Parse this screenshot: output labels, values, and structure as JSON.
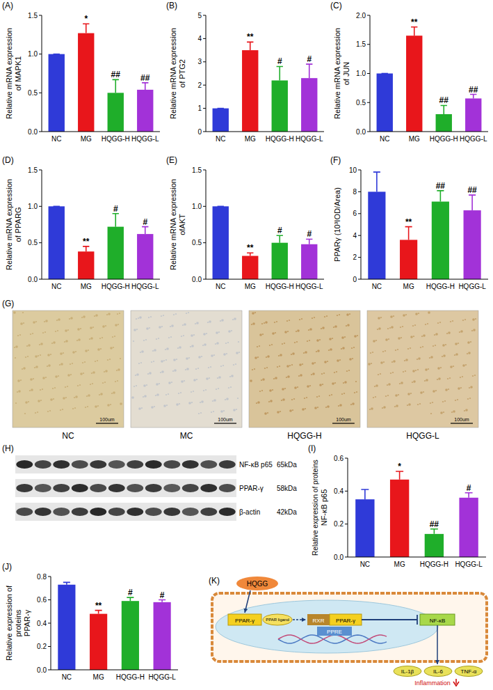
{
  "chart_data": [
    {
      "type": "bar",
      "panel": "(A)",
      "ylabel": [
        "Relative mRNA expression",
        "of MAPK1"
      ],
      "categories": [
        "NC",
        "MG",
        "HQGG-H",
        "HQGG-L"
      ],
      "values": [
        1.0,
        1.27,
        0.5,
        0.54
      ],
      "errors": [
        0,
        0.12,
        0.17,
        0.09
      ],
      "colors": [
        "#2f3ad8",
        "#e8161b",
        "#1fae2a",
        "#a232d8"
      ],
      "annotations": [
        null,
        "*",
        "##",
        "##"
      ],
      "ylim": [
        0,
        1.5
      ],
      "yticks": [
        {
          "value": 0,
          "label": "0.0"
        },
        0.5,
        {
          "value": 1,
          "label": "1.0"
        },
        1.5
      ]
    },
    {
      "type": "bar",
      "panel": "(B)",
      "ylabel": [
        "Relative mRNA expression",
        "of  PTG2"
      ],
      "categories": [
        "NC",
        "MG",
        "HQGG-H",
        "HQGG-L"
      ],
      "values": [
        1.0,
        3.5,
        2.2,
        2.3
      ],
      "errors": [
        0,
        0.35,
        0.6,
        0.6
      ],
      "colors": [
        "#2f3ad8",
        "#e8161b",
        "#1fae2a",
        "#a232d8"
      ],
      "annotations": [
        null,
        "**",
        "#",
        "#"
      ],
      "ylim": [
        0,
        5
      ],
      "yticks": [
        0,
        1,
        2,
        3,
        4,
        5
      ]
    },
    {
      "type": "bar",
      "panel": "(C)",
      "ylabel": [
        "Relative mRNA expression",
        "of JUN"
      ],
      "categories": [
        "NC",
        "MG",
        "HQGG-H",
        "HQGG-L"
      ],
      "values": [
        1.0,
        1.65,
        0.3,
        0.57
      ],
      "errors": [
        0,
        0.15,
        0.15,
        0.07
      ],
      "colors": [
        "#2f3ad8",
        "#e8161b",
        "#1fae2a",
        "#a232d8"
      ],
      "annotations": [
        null,
        "**",
        "##",
        "##"
      ],
      "ylim": [
        0,
        2
      ],
      "yticks": [
        {
          "value": 0,
          "label": "0.0"
        },
        0.5,
        {
          "value": 1,
          "label": "1.0"
        },
        1.5,
        {
          "value": 2,
          "label": "2.0"
        }
      ]
    },
    {
      "type": "bar",
      "panel": "(D)",
      "ylabel": [
        "Relative mRNA expression",
        "of PPARG"
      ],
      "categories": [
        "NC",
        "MG",
        "HQGG-H",
        "HQGG-L"
      ],
      "values": [
        1.0,
        0.38,
        0.72,
        0.62
      ],
      "errors": [
        0,
        0.07,
        0.18,
        0.1
      ],
      "colors": [
        "#2f3ad8",
        "#e8161b",
        "#1fae2a",
        "#a232d8"
      ],
      "annotations": [
        null,
        "**",
        "#",
        "#"
      ],
      "ylim": [
        0,
        1.5
      ],
      "yticks": [
        {
          "value": 0,
          "label": "0.0"
        },
        0.5,
        {
          "value": 1,
          "label": "1.0"
        },
        1.5
      ]
    },
    {
      "type": "bar",
      "panel": "(E)",
      "ylabel": [
        "Relative mRNA expression",
        "ofAKT"
      ],
      "categories": [
        "NC",
        "MG",
        "HQGG-H",
        "HQGG-L"
      ],
      "values": [
        1.0,
        0.32,
        0.5,
        0.48
      ],
      "errors": [
        0,
        0.04,
        0.1,
        0.07
      ],
      "colors": [
        "#2f3ad8",
        "#e8161b",
        "#1fae2a",
        "#a232d8"
      ],
      "annotations": [
        null,
        "**",
        "#",
        "#"
      ],
      "ylim": [
        0,
        1.5
      ],
      "yticks": [
        {
          "value": 0,
          "label": "0.0"
        },
        0.5,
        {
          "value": 1,
          "label": "1.0"
        },
        1.5
      ]
    },
    {
      "type": "bar",
      "panel": "(F)",
      "ylabel": [
        "PPARγ (10³IOD/Area)"
      ],
      "categories": [
        "NC",
        "MG",
        "HQGG-H",
        "HQGG-L"
      ],
      "values": [
        8.0,
        3.6,
        7.1,
        6.3
      ],
      "errors": [
        1.8,
        1.2,
        1.0,
        1.4
      ],
      "colors": [
        "#2f3ad8",
        "#e8161b",
        "#1fae2a",
        "#a232d8"
      ],
      "annotations": [
        null,
        "**",
        "##",
        "##"
      ],
      "ylim": [
        0,
        10
      ],
      "yticks": [
        0,
        2,
        4,
        6,
        8,
        10
      ]
    },
    {
      "type": "bar",
      "panel": "(I)",
      "ylabel": [
        "Relative expression of proteins",
        "NF-κB p65"
      ],
      "categories": [
        "NC",
        "MG",
        "HQGG-H",
        "HQGG-L"
      ],
      "values": [
        0.35,
        0.47,
        0.14,
        0.36
      ],
      "errors": [
        0.06,
        0.05,
        0.03,
        0.03
      ],
      "colors": [
        "#2f3ad8",
        "#e8161b",
        "#1fae2a",
        "#a232d8"
      ],
      "annotations": [
        null,
        "*",
        "##",
        "#"
      ],
      "ylim": [
        0,
        0.6
      ],
      "yticks": [
        {
          "value": 0,
          "label": "0.0"
        },
        0.2,
        0.4,
        0.6
      ]
    },
    {
      "type": "bar",
      "panel": "(J)",
      "ylabel": [
        "Relative expression of",
        "proteins",
        "PPAR-γ"
      ],
      "categories": [
        "NC",
        "MG",
        "HQGG-H",
        "HQGG-L"
      ],
      "values": [
        0.73,
        0.48,
        0.59,
        0.58
      ],
      "errors": [
        0.02,
        0.03,
        0.03,
        0.02
      ],
      "colors": [
        "#2f3ad8",
        "#e8161b",
        "#1fae2a",
        "#a232d8"
      ],
      "annotations": [
        null,
        "**",
        "#",
        "#"
      ],
      "ylim": [
        0,
        0.8
      ],
      "yticks": [
        {
          "value": 0,
          "label": "0.0"
        },
        0.2,
        0.4,
        0.6,
        0.8
      ]
    }
  ],
  "micrographs": {
    "panel": "(G)",
    "captions": [
      "NC",
      "MC",
      "HQGG-H",
      "HQGG-L"
    ],
    "scale_bar": "100um"
  },
  "blot": {
    "panel": "(H)",
    "rows": [
      {
        "label": "NF-κB p65",
        "size": "65kDa"
      },
      {
        "label": "PPAR-γ",
        "size": "58kDa"
      },
      {
        "label": "β-actin",
        "size": "42kDa"
      }
    ]
  },
  "diagram": {
    "panel": "(K)",
    "nodes": [
      {
        "label": "HQGG"
      },
      {
        "label": "PPAR-γ"
      },
      {
        "label": "PPAR ligand"
      },
      {
        "label": "RXR"
      },
      {
        "label": "PPAR-γ"
      },
      {
        "label": "PPRE"
      },
      {
        "label": "NF-κB"
      },
      {
        "label": "IL-1β"
      },
      {
        "label": "IL-6"
      },
      {
        "label": "TNF-α"
      },
      {
        "label": "Inflammation"
      }
    ]
  }
}
